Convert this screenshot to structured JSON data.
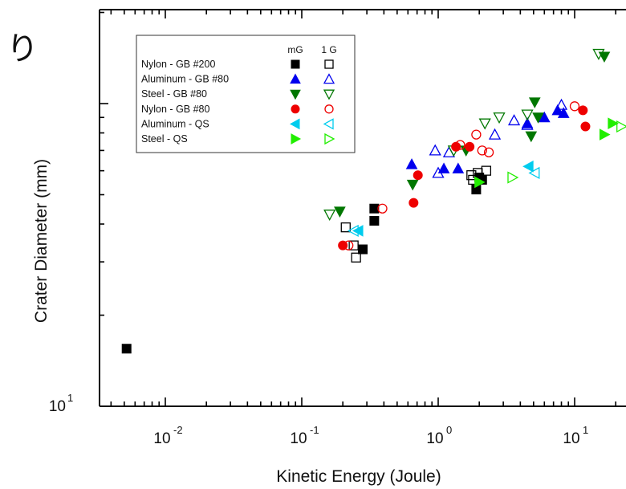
{
  "partial_text": "り",
  "chart_data": {
    "type": "scatter",
    "xlabel": "Kinetic Energy (Joule)",
    "ylabel": "Crater Diameter (mm)",
    "xscale": "log",
    "yscale": "log",
    "xlim": [
      0.0025,
      25
    ],
    "ylim": [
      10,
      200
    ],
    "x_tick_labels": [
      "10",
      "10",
      "10",
      "10"
    ],
    "x_tick_exponents": [
      "-2",
      "-1",
      "0",
      "1"
    ],
    "x_tick_values": [
      0.01,
      0.1,
      1,
      10
    ],
    "y_tick_labels": [
      "10"
    ],
    "y_tick_exponents": [
      "1"
    ],
    "y_tick_values": [
      10
    ],
    "legend_position": "top-left",
    "legend_headers": [
      "mG",
      "1 G"
    ],
    "legend_rows": [
      {
        "label": "Nylon - GB #200",
        "marker": "square",
        "color": "#000000"
      },
      {
        "label": "Aluminum - GB #80",
        "marker": "triangle-up",
        "color": "#0000ee"
      },
      {
        "label": "Steel - GB #80",
        "marker": "triangle-down",
        "color": "#007700"
      },
      {
        "label": "Nylon - GB #80",
        "marker": "circle",
        "color": "#ee0000"
      },
      {
        "label": "Aluminum - QS",
        "marker": "triangle-left",
        "color": "#00ccee"
      },
      {
        "label": "Steel - QS",
        "marker": "triangle-right",
        "color": "#22ee00"
      }
    ],
    "series": [
      {
        "name": "Nylon - GB #200",
        "gravity": "mG",
        "filled": true,
        "marker": "square",
        "color": "#000000",
        "points": [
          [
            0.0052,
            15.5
          ],
          [
            0.28,
            33
          ],
          [
            0.34,
            41
          ],
          [
            0.34,
            45
          ],
          [
            1.9,
            52
          ],
          [
            2.0,
            57
          ],
          [
            2.1,
            56
          ]
        ]
      },
      {
        "name": "Nylon - GB #200",
        "gravity": "1 G",
        "filled": false,
        "marker": "square",
        "color": "#000000",
        "points": [
          [
            0.21,
            39
          ],
          [
            0.24,
            34
          ],
          [
            0.25,
            31
          ],
          [
            1.8,
            56
          ],
          [
            1.95,
            59
          ],
          [
            2.25,
            60
          ],
          [
            1.75,
            58
          ]
        ]
      },
      {
        "name": "Aluminum - GB #80",
        "gravity": "mG",
        "filled": true,
        "marker": "triangle-up",
        "color": "#0000ee",
        "points": [
          [
            0.64,
            63
          ],
          [
            1.1,
            61
          ],
          [
            1.4,
            61
          ],
          [
            4.5,
            86
          ],
          [
            6.0,
            90
          ],
          [
            7.5,
            95
          ],
          [
            8.3,
            93
          ]
        ]
      },
      {
        "name": "Aluminum - GB #80",
        "gravity": "1 G",
        "filled": false,
        "marker": "triangle-up",
        "color": "#0000ee",
        "points": [
          [
            0.95,
            70
          ],
          [
            1.0,
            59
          ],
          [
            1.2,
            69
          ],
          [
            2.6,
            79
          ],
          [
            3.6,
            88
          ],
          [
            4.5,
            85
          ],
          [
            8.0,
            99
          ]
        ]
      },
      {
        "name": "Steel - GB #80",
        "gravity": "mG",
        "filled": true,
        "marker": "triangle-down",
        "color": "#007700",
        "points": [
          [
            0.19,
            44
          ],
          [
            0.65,
            54
          ],
          [
            1.6,
            70
          ],
          [
            4.8,
            78
          ],
          [
            5.1,
            101
          ],
          [
            5.4,
            90
          ],
          [
            16.5,
            143
          ]
        ]
      },
      {
        "name": "Steel - GB #80",
        "gravity": "1 G",
        "filled": false,
        "marker": "triangle-down",
        "color": "#007700",
        "points": [
          [
            0.16,
            43
          ],
          [
            1.3,
            70
          ],
          [
            2.2,
            86
          ],
          [
            2.8,
            90
          ],
          [
            4.5,
            92
          ],
          [
            15.0,
            146
          ]
        ]
      },
      {
        "name": "Nylon - GB #80",
        "gravity": "mG",
        "filled": true,
        "marker": "circle",
        "color": "#ee0000",
        "points": [
          [
            0.2,
            34
          ],
          [
            0.71,
            58
          ],
          [
            0.66,
            47
          ],
          [
            1.35,
            72
          ],
          [
            1.7,
            72
          ],
          [
            12.0,
            84
          ],
          [
            11.5,
            95
          ]
        ]
      },
      {
        "name": "Nylon - GB #80",
        "gravity": "1 G",
        "filled": false,
        "marker": "circle",
        "color": "#ee0000",
        "points": [
          [
            0.22,
            34
          ],
          [
            0.39,
            45
          ],
          [
            1.45,
            73
          ],
          [
            1.9,
            79
          ],
          [
            2.1,
            70
          ],
          [
            2.35,
            69
          ],
          [
            10.0,
            98
          ]
        ]
      },
      {
        "name": "Aluminum - QS",
        "gravity": "mG",
        "filled": true,
        "marker": "triangle-left",
        "color": "#00ccee",
        "points": [
          [
            0.26,
            38
          ],
          [
            4.6,
            62
          ]
        ]
      },
      {
        "name": "Aluminum - QS",
        "gravity": "1 G",
        "filled": false,
        "marker": "triangle-left",
        "color": "#00ccee",
        "points": [
          [
            0.24,
            38
          ],
          [
            5.1,
            59
          ]
        ]
      },
      {
        "name": "Steel - QS",
        "gravity": "mG",
        "filled": true,
        "marker": "triangle-right",
        "color": "#22ee00",
        "points": [
          [
            2.0,
            55
          ],
          [
            16.5,
            79
          ],
          [
            19.0,
            86
          ]
        ]
      },
      {
        "name": "Steel - QS",
        "gravity": "1 G",
        "filled": false,
        "marker": "triangle-right",
        "color": "#22ee00",
        "points": [
          [
            3.5,
            57
          ],
          [
            22.0,
            84
          ]
        ]
      }
    ]
  }
}
